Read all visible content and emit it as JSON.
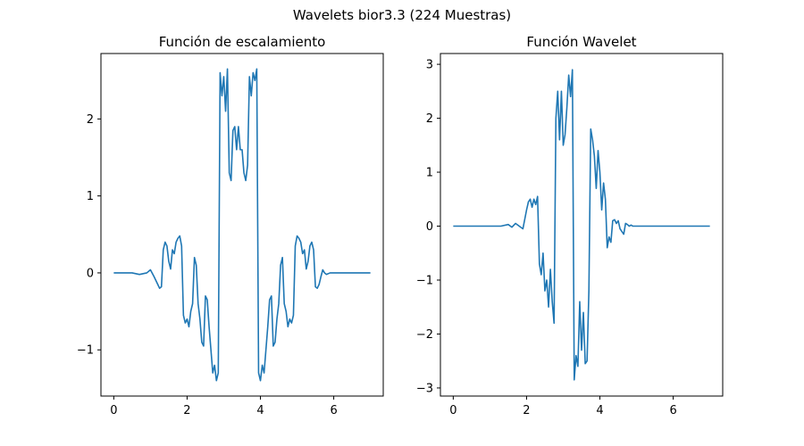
{
  "figure": {
    "suptitle": "Wavelets bior3.3 (224 Muestras)"
  },
  "chart_data": [
    {
      "type": "line",
      "title": "Función de escalamiento",
      "xlabel": "",
      "ylabel": "",
      "xlim": [
        -0.35,
        7.35
      ],
      "ylim": [
        -1.6,
        2.85
      ],
      "xticks": [
        0,
        2,
        4,
        6
      ],
      "xtick_labels": [
        "0",
        "2",
        "4",
        "6"
      ],
      "yticks": [
        -1,
        0,
        1,
        2
      ],
      "ytick_labels": [
        "−1",
        "0",
        "1",
        "2"
      ],
      "grid": false,
      "color": "#1f77b4",
      "x": [
        0,
        0.5,
        0.7,
        0.9,
        1.0,
        1.1,
        1.2,
        1.25,
        1.3,
        1.35,
        1.4,
        1.45,
        1.5,
        1.55,
        1.6,
        1.65,
        1.7,
        1.75,
        1.8,
        1.85,
        1.9,
        1.95,
        2.0,
        2.05,
        2.1,
        2.15,
        2.2,
        2.25,
        2.3,
        2.35,
        2.4,
        2.45,
        2.5,
        2.55,
        2.6,
        2.65,
        2.7,
        2.75,
        2.8,
        2.85,
        2.9,
        2.95,
        3.0,
        3.05,
        3.1,
        3.15,
        3.2,
        3.25,
        3.3,
        3.35,
        3.4,
        3.45,
        3.5,
        3.55,
        3.6,
        3.65,
        3.7,
        3.75,
        3.8,
        3.85,
        3.9,
        3.95,
        4.0,
        4.05,
        4.1,
        4.15,
        4.2,
        4.25,
        4.3,
        4.35,
        4.4,
        4.45,
        4.5,
        4.55,
        4.6,
        4.65,
        4.7,
        4.75,
        4.8,
        4.85,
        4.9,
        4.95,
        5.0,
        5.05,
        5.1,
        5.15,
        5.2,
        5.25,
        5.3,
        5.35,
        5.4,
        5.45,
        5.5,
        5.55,
        5.6,
        5.65,
        5.7,
        5.75,
        5.8,
        5.9,
        6.0,
        6.1,
        6.3,
        6.5,
        7.0
      ],
      "y": [
        0,
        0,
        -0.02,
        0,
        0.04,
        -0.05,
        -0.15,
        -0.2,
        -0.18,
        0.3,
        0.4,
        0.35,
        0.15,
        0.05,
        0.3,
        0.25,
        0.4,
        0.45,
        0.48,
        0.35,
        -0.55,
        -0.65,
        -0.6,
        -0.7,
        -0.5,
        -0.4,
        0.2,
        0.1,
        -0.4,
        -0.6,
        -0.9,
        -0.95,
        -0.3,
        -0.35,
        -0.7,
        -1.0,
        -1.3,
        -1.2,
        -1.4,
        -1.3,
        2.6,
        2.3,
        2.55,
        2.1,
        2.65,
        1.3,
        1.2,
        1.85,
        1.9,
        1.6,
        1.9,
        1.6,
        1.6,
        1.3,
        1.2,
        1.4,
        2.55,
        2.3,
        2.6,
        2.5,
        2.65,
        -1.3,
        -1.4,
        -1.2,
        -1.3,
        -1.0,
        -0.7,
        -0.35,
        -0.3,
        -0.95,
        -0.9,
        -0.6,
        -0.4,
        0.1,
        0.2,
        -0.4,
        -0.5,
        -0.7,
        -0.6,
        -0.65,
        -0.55,
        0.35,
        0.48,
        0.45,
        0.4,
        0.25,
        0.3,
        0.05,
        0.15,
        0.35,
        0.4,
        0.3,
        -0.18,
        -0.2,
        -0.15,
        -0.05,
        0.04,
        0,
        -0.02,
        0,
        0,
        0,
        0,
        0,
        0
      ]
    },
    {
      "type": "line",
      "title": "Función Wavelet",
      "xlabel": "",
      "ylabel": "",
      "xlim": [
        -0.35,
        7.35
      ],
      "ylim": [
        -3.15,
        3.2
      ],
      "xticks": [
        0,
        2,
        4,
        6
      ],
      "xtick_labels": [
        "0",
        "2",
        "4",
        "6"
      ],
      "yticks": [
        -3,
        -2,
        -1,
        0,
        1,
        2,
        3
      ],
      "ytick_labels": [
        "−3",
        "−2",
        "−1",
        "0",
        "1",
        "2",
        "3"
      ],
      "grid": false,
      "color": "#1f77b4",
      "x": [
        0,
        1.0,
        1.3,
        1.5,
        1.6,
        1.7,
        1.8,
        1.9,
        2.0,
        2.05,
        2.1,
        2.15,
        2.2,
        2.25,
        2.3,
        2.35,
        2.4,
        2.45,
        2.5,
        2.55,
        2.6,
        2.65,
        2.7,
        2.75,
        2.8,
        2.85,
        2.9,
        2.95,
        3.0,
        3.05,
        3.1,
        3.15,
        3.2,
        3.25,
        3.3,
        3.35,
        3.4,
        3.45,
        3.5,
        3.55,
        3.6,
        3.65,
        3.7,
        3.75,
        3.8,
        3.85,
        3.9,
        3.95,
        4.0,
        4.05,
        4.1,
        4.15,
        4.2,
        4.25,
        4.3,
        4.35,
        4.4,
        4.45,
        4.5,
        4.55,
        4.6,
        4.65,
        4.7,
        4.75,
        4.8,
        4.85,
        4.9,
        4.95,
        5.0,
        5.1,
        5.2,
        5.3,
        5.4,
        5.5,
        5.6,
        7.0
      ],
      "y": [
        0,
        0,
        0,
        0.03,
        -0.02,
        0.05,
        0,
        -0.05,
        0.3,
        0.45,
        0.5,
        0.35,
        0.5,
        0.4,
        0.55,
        -0.7,
        -0.9,
        -0.5,
        -1.2,
        -1.0,
        -1.5,
        -0.8,
        -1.4,
        -1.8,
        2.0,
        2.5,
        1.6,
        2.5,
        1.5,
        1.7,
        2.2,
        2.8,
        2.4,
        2.9,
        -2.85,
        -2.4,
        -2.6,
        -1.4,
        -2.3,
        -1.6,
        -2.55,
        -2.5,
        -1.2,
        1.8,
        1.6,
        1.3,
        0.7,
        1.4,
        1.0,
        0.3,
        0.8,
        0.5,
        -0.4,
        -0.2,
        -0.3,
        0.1,
        0.12,
        0.05,
        0.1,
        -0.05,
        -0.1,
        -0.15,
        0.05,
        0.03,
        0,
        0.02,
        0,
        0,
        0,
        0,
        0,
        0,
        0,
        0,
        0,
        0
      ]
    }
  ]
}
